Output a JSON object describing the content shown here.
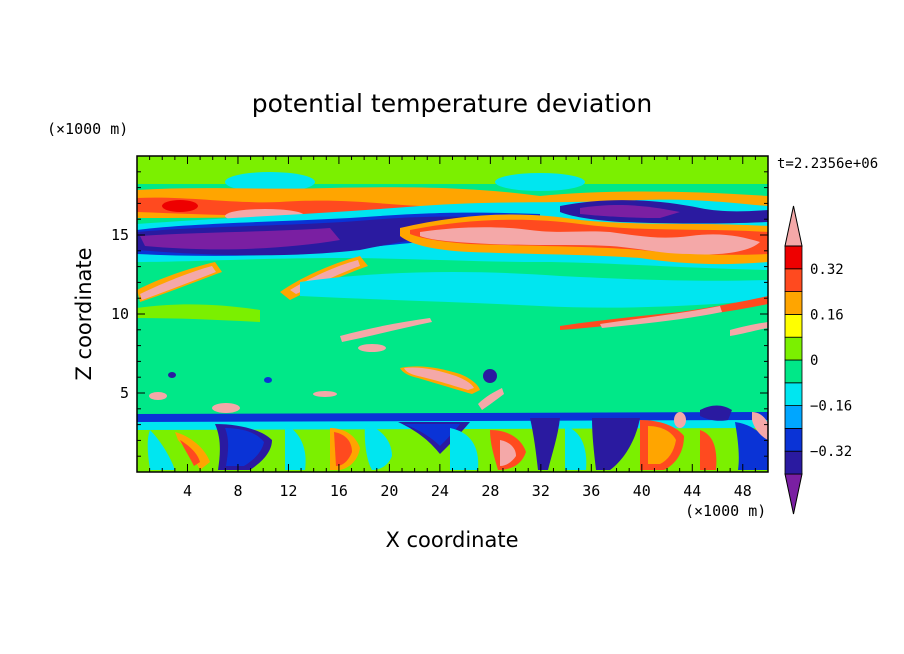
{
  "chart_data": {
    "type": "heatmap",
    "title": "potential temperature deviation",
    "xlabel": "X coordinate",
    "ylabel": "Z coordinate",
    "x_unit": "(×1000 m)",
    "y_unit": "(×1000 m)",
    "time_label": "t=2.2356e+06",
    "xlim": [
      0,
      50
    ],
    "ylim": [
      0,
      20
    ],
    "x_ticks": [
      4,
      8,
      12,
      16,
      20,
      24,
      28,
      32,
      36,
      40,
      44,
      48
    ],
    "y_ticks": [
      5,
      10,
      15
    ],
    "colorbar": {
      "levels": [
        -0.4,
        -0.32,
        -0.24,
        -0.16,
        -0.08,
        0,
        0.08,
        0.16,
        0.24,
        0.32,
        0.4
      ],
      "labeled_ticks": [
        0.32,
        0.16,
        0,
        -0.16,
        -0.32
      ],
      "colors": [
        "#7a1fa2",
        "#2a1aa0",
        "#0a33d6",
        "#00a6ff",
        "#00e6f0",
        "#00e888",
        "#7bf000",
        "#ffff00",
        "#ffa500",
        "#ff4a1f",
        "#ee0000",
        "#f4a8a8"
      ]
    }
  }
}
